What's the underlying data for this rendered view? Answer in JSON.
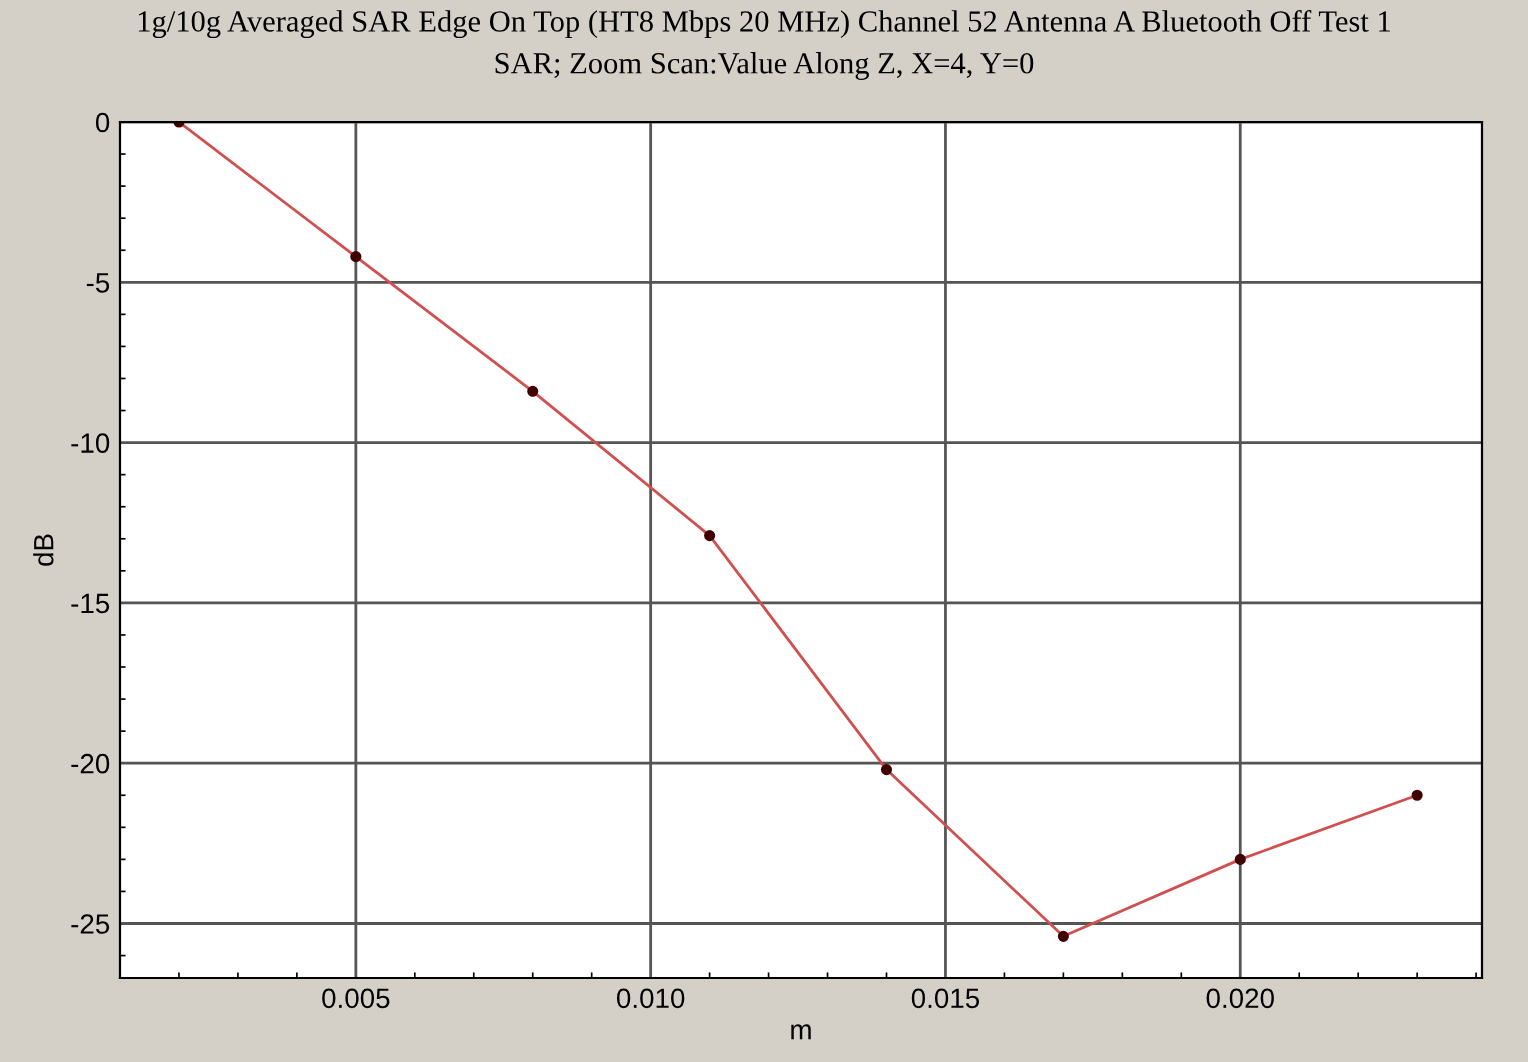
{
  "chart_data": {
    "type": "line",
    "title": "1g/10g Averaged SAR Edge On Top (HT8 Mbps 20 MHz) Channel 52 Antenna A Bluetooth Off Test 1",
    "subtitle": "SAR; Zoom Scan:Value Along Z, X=4, Y=0",
    "xlabel": "m",
    "ylabel": "dB",
    "x": [
      0.002,
      0.005,
      0.008,
      0.011,
      0.014,
      0.017,
      0.02,
      0.023
    ],
    "series": [
      {
        "color": "#d05050",
        "values": [
          0,
          -4.2,
          -8.4,
          -12.9,
          -20.2,
          -25.4,
          -23.0,
          -21.0
        ]
      }
    ],
    "xlim": [
      0.001,
      0.0241
    ],
    "ylim": [
      -26.7,
      0
    ],
    "xticks": [
      {
        "value": 0.005,
        "label": "0.005"
      },
      {
        "value": 0.01,
        "label": "0.010"
      },
      {
        "value": 0.015,
        "label": "0.015"
      },
      {
        "value": 0.02,
        "label": "0.020"
      }
    ],
    "yticks": [
      -25,
      -20,
      -15,
      -10,
      -5,
      0
    ],
    "grid": true,
    "marker": "circle",
    "line_style": "solid",
    "legend": false
  }
}
